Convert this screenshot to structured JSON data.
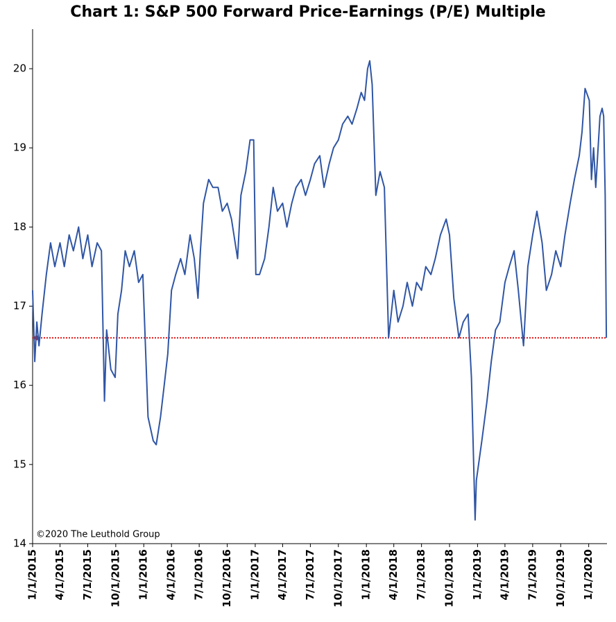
{
  "chart_data": {
    "type": "line",
    "title": "Chart 1: S&P 500 Forward Price-Earnings (P/E) Multiple",
    "annotation": "©2020 The Leuthold Group",
    "xlim": [
      "1/1/2015",
      "3/1/2020"
    ],
    "xticks": [
      "1/1/2015",
      "4/1/2015",
      "7/1/2015",
      "10/1/2015",
      "1/1/2016",
      "4/1/2016",
      "7/1/2016",
      "10/1/2016",
      "1/1/2017",
      "4/1/2017",
      "7/1/2017",
      "10/1/2017",
      "1/1/2018",
      "4/1/2018",
      "7/1/2018",
      "10/1/2018",
      "1/1/2019",
      "4/1/2019",
      "7/1/2019",
      "10/1/2019",
      "1/1/2020"
    ],
    "ylim": [
      14,
      20.5
    ],
    "yticks": [
      14,
      15,
      16,
      17,
      18,
      19,
      20
    ],
    "reference_line": {
      "value": 16.6,
      "color": "#e01010"
    },
    "x": [
      "1/1/2015",
      "1/8/2015",
      "1/15/2015",
      "1/22/2015",
      "2/1/2015",
      "2/15/2015",
      "3/1/2015",
      "3/15/2015",
      "4/1/2015",
      "4/15/2015",
      "5/1/2015",
      "5/15/2015",
      "6/1/2015",
      "6/15/2015",
      "7/1/2015",
      "7/15/2015",
      "8/1/2015",
      "8/15/2015",
      "8/25/2015",
      "9/1/2015",
      "9/15/2015",
      "9/29/2015",
      "10/8/2015",
      "10/20/2015",
      "11/1/2015",
      "11/15/2015",
      "12/1/2015",
      "12/15/2015",
      "12/29/2015",
      "1/15/2016",
      "2/1/2016",
      "2/11/2016",
      "2/25/2016",
      "3/8/2016",
      "3/20/2016",
      "4/1/2016",
      "4/15/2016",
      "5/1/2016",
      "5/15/2016",
      "6/1/2016",
      "6/15/2016",
      "6/27/2016",
      "7/5/2016",
      "7/15/2016",
      "8/1/2016",
      "8/15/2016",
      "9/1/2016",
      "9/15/2016",
      "10/1/2016",
      "10/15/2016",
      "11/4/2016",
      "11/15/2016",
      "12/1/2016",
      "12/15/2016",
      "12/27/2016",
      "1/3/2017",
      "1/15/2017",
      "2/1/2017",
      "2/15/2017",
      "3/1/2017",
      "3/15/2017",
      "4/1/2017",
      "4/15/2017",
      "5/1/2017",
      "5/15/2017",
      "6/1/2017",
      "6/15/2017",
      "7/1/2017",
      "7/15/2017",
      "8/1/2017",
      "8/15/2017",
      "9/1/2017",
      "9/15/2017",
      "10/1/2017",
      "10/15/2017",
      "11/1/2017",
      "11/15/2017",
      "12/1/2017",
      "12/15/2017",
      "12/26/2017",
      "1/5/2018",
      "1/12/2018",
      "1/20/2018",
      "2/1/2018",
      "2/15/2018",
      "3/1/2018",
      "3/15/2018",
      "4/1/2018",
      "4/15/2018",
      "5/1/2018",
      "5/15/2018",
      "6/1/2018",
      "6/15/2018",
      "7/1/2018",
      "7/15/2018",
      "8/1/2018",
      "8/15/2018",
      "9/1/2018",
      "9/20/2018",
      "10/1/2018",
      "10/15/2018",
      "11/1/2018",
      "11/15/2018",
      "12/1/2018",
      "12/12/2018",
      "12/24/2018",
      "12/28/2018",
      "1/15/2019",
      "2/1/2019",
      "2/15/2019",
      "3/1/2019",
      "3/15/2019",
      "4/1/2019",
      "4/15/2019",
      "5/1/2019",
      "5/15/2019",
      "6/1/2019",
      "6/15/2019",
      "7/1/2019",
      "7/15/2019",
      "8/1/2019",
      "8/15/2019",
      "9/1/2019",
      "9/15/2019",
      "10/1/2019",
      "10/15/2019",
      "11/1/2019",
      "11/15/2019",
      "12/1/2019",
      "12/10/2019",
      "12/20/2019",
      "1/3/2020",
      "1/10/2020",
      "1/17/2020",
      "1/24/2020",
      "2/7/2020",
      "2/14/2020",
      "2/19/2020",
      "2/24/2020",
      "2/28/2020"
    ],
    "series": [
      {
        "name": "Forward P/E",
        "color": "#2f55a4",
        "values": [
          17.2,
          16.3,
          16.8,
          16.5,
          16.9,
          17.4,
          17.8,
          17.5,
          17.8,
          17.5,
          17.9,
          17.7,
          18.0,
          17.6,
          17.9,
          17.5,
          17.8,
          17.7,
          15.8,
          16.7,
          16.2,
          16.1,
          16.9,
          17.2,
          17.7,
          17.5,
          17.7,
          17.3,
          17.4,
          15.6,
          15.3,
          15.25,
          15.6,
          16.0,
          16.4,
          17.2,
          17.4,
          17.6,
          17.4,
          17.9,
          17.6,
          17.1,
          17.7,
          18.3,
          18.6,
          18.5,
          18.5,
          18.2,
          18.3,
          18.1,
          17.6,
          18.4,
          18.7,
          19.1,
          19.1,
          17.4,
          17.4,
          17.6,
          18.0,
          18.5,
          18.2,
          18.3,
          18.0,
          18.3,
          18.5,
          18.6,
          18.4,
          18.6,
          18.8,
          18.9,
          18.5,
          18.8,
          19.0,
          19.1,
          19.3,
          19.4,
          19.3,
          19.5,
          19.7,
          19.6,
          20.0,
          20.1,
          19.8,
          18.4,
          18.7,
          18.5,
          16.6,
          17.2,
          16.8,
          17.0,
          17.3,
          17.0,
          17.3,
          17.2,
          17.5,
          17.4,
          17.6,
          17.9,
          18.1,
          17.9,
          17.1,
          16.6,
          16.8,
          16.9,
          16.1,
          14.3,
          14.8,
          15.3,
          15.8,
          16.3,
          16.7,
          16.8,
          17.3,
          17.5,
          17.7,
          17.2,
          16.5,
          17.5,
          17.9,
          18.2,
          17.8,
          17.2,
          17.4,
          17.7,
          17.5,
          17.9,
          18.3,
          18.6,
          18.9,
          19.2,
          19.75,
          19.6,
          18.6,
          19.0,
          18.5,
          19.4,
          19.5,
          19.4,
          18.4,
          16.6
        ]
      }
    ]
  }
}
